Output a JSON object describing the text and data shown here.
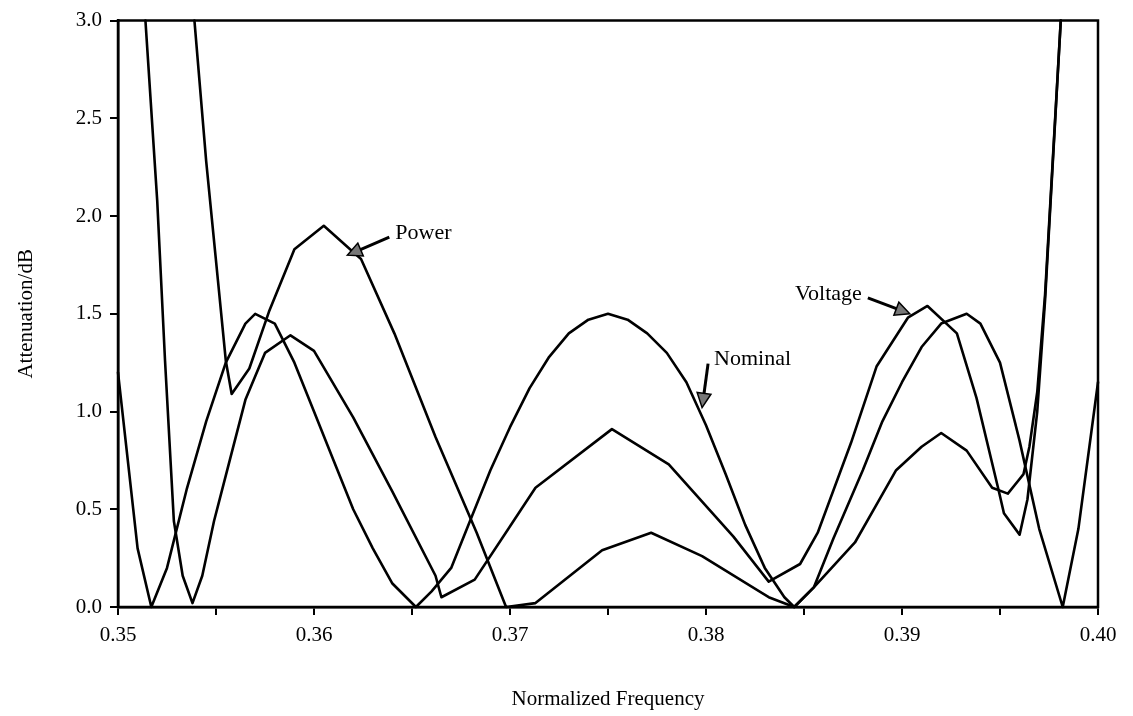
{
  "chart_data": {
    "type": "line",
    "xlabel": "Normalized Frequency",
    "ylabel": "Attenuation/dB",
    "xlim": [
      0.35,
      0.4
    ],
    "ylim": [
      0,
      3.0
    ],
    "xticks": [
      0.35,
      {
        "value": 0.355,
        "label": null
      },
      0.36,
      {
        "value": 0.365,
        "label": null
      },
      0.37,
      {
        "value": 0.375,
        "label": null
      },
      0.38,
      {
        "value": 0.385,
        "label": null
      },
      0.39,
      {
        "value": 0.395,
        "label": null
      },
      {
        "value": 0.4,
        "label": "0.40"
      }
    ],
    "yticks": [
      {
        "value": 0,
        "label": "0.0"
      },
      0.5,
      {
        "value": 1,
        "label": "1.0"
      },
      1.5,
      {
        "value": 2,
        "label": "2.0"
      },
      2.5,
      {
        "value": 3,
        "label": "3.0"
      }
    ],
    "grid": false,
    "legend": false,
    "marker": "none",
    "line_style": "solid",
    "series": [
      {
        "color": "#000000",
        "x": [
          0.35,
          0.3505,
          0.351,
          0.3517,
          0.3525,
          0.3535,
          0.3545,
          0.3555,
          0.3565,
          0.357,
          0.358,
          0.359,
          0.36,
          0.361,
          0.362,
          0.363,
          0.364,
          0.3652,
          0.366,
          0.367,
          0.368,
          0.369,
          0.37,
          0.371,
          0.372,
          0.373,
          0.374,
          0.375,
          0.376,
          0.377,
          0.378,
          0.379,
          0.38,
          0.381,
          0.382,
          0.383,
          0.384,
          0.3845,
          0.3855,
          0.3865,
          0.388,
          0.389,
          0.39,
          0.391,
          0.392,
          0.3933,
          0.394,
          0.395,
          0.396,
          0.397,
          0.3982,
          0.399,
          0.4
        ],
        "values": [
          1.2,
          0.75,
          0.3,
          0,
          0.2,
          0.6,
          0.95,
          1.25,
          1.45,
          1.5,
          1.45,
          1.25,
          1.0,
          0.75,
          0.5,
          0.3,
          0.12,
          0,
          0.08,
          0.2,
          0.45,
          0.7,
          0.92,
          1.12,
          1.28,
          1.4,
          1.47,
          1.5,
          1.47,
          1.4,
          1.3,
          1.15,
          0.93,
          0.68,
          0.42,
          0.2,
          0.05,
          0,
          0.1,
          0.35,
          0.7,
          0.95,
          1.15,
          1.33,
          1.45,
          1.5,
          1.45,
          1.25,
          0.85,
          0.4,
          0,
          0.4,
          1.15
        ]
      },
      {
        "color": "#000000",
        "x": [
          0.3514,
          0.352,
          0.3524,
          0.35285,
          0.3533,
          0.3538,
          0.3543,
          0.3549,
          0.3557,
          0.3565,
          0.3575,
          0.3588,
          0.36,
          0.362,
          0.364,
          0.3662,
          0.3665,
          0.3682,
          0.3713,
          0.3752,
          0.3781,
          0.3814,
          0.3832,
          0.3848,
          0.3857,
          0.3874,
          0.3887,
          0.3903,
          0.3913,
          0.3928,
          0.3938,
          0.3949,
          0.3952,
          0.396,
          0.3964,
          0.3969,
          0.3973,
          0.3981
        ],
        "values": [
          3.0,
          2.08,
          1.26,
          0.44,
          0.16,
          0.02,
          0.16,
          0.44,
          0.75,
          1.06,
          1.3,
          1.39,
          1.31,
          0.97,
          0.59,
          0.16,
          0.05,
          0.14,
          0.61,
          0.91,
          0.73,
          0.36,
          0.13,
          0.22,
          0.38,
          0.84,
          1.23,
          1.48,
          1.54,
          1.4,
          1.07,
          0.61,
          0.48,
          0.37,
          0.55,
          1.0,
          1.57,
          3.0
        ]
      },
      {
        "color": "#000000",
        "x": [
          0.3539,
          0.3545,
          0.3551,
          0.3555,
          0.3558,
          0.3567,
          0.3577,
          0.359,
          0.3605,
          0.3624,
          0.3641,
          0.3662,
          0.3683,
          0.3698,
          0.3713,
          0.3747,
          0.3772,
          0.3798,
          0.3832,
          0.3845,
          0.3855,
          0.3876,
          0.3897,
          0.391,
          0.392,
          0.3933,
          0.3946,
          0.3954,
          0.3962,
          0.3965,
          0.3969,
          0.3973,
          0.3981
        ],
        "values": [
          3.0,
          2.28,
          1.67,
          1.26,
          1.09,
          1.22,
          1.51,
          1.83,
          1.95,
          1.78,
          1.4,
          0.87,
          0.38,
          0,
          0.02,
          0.29,
          0.38,
          0.26,
          0.05,
          0,
          0.1,
          0.33,
          0.7,
          0.82,
          0.89,
          0.8,
          0.61,
          0.58,
          0.68,
          0.82,
          1.1,
          1.6,
          3.0
        ]
      }
    ],
    "annotations": [
      {
        "text": "Power",
        "x": 0.3617,
        "y": 1.8
      },
      {
        "text": "Voltage",
        "x": 0.3904,
        "y": 1.5
      },
      {
        "text": "Nominal",
        "x": 0.3798,
        "y": 1.02
      }
    ]
  }
}
